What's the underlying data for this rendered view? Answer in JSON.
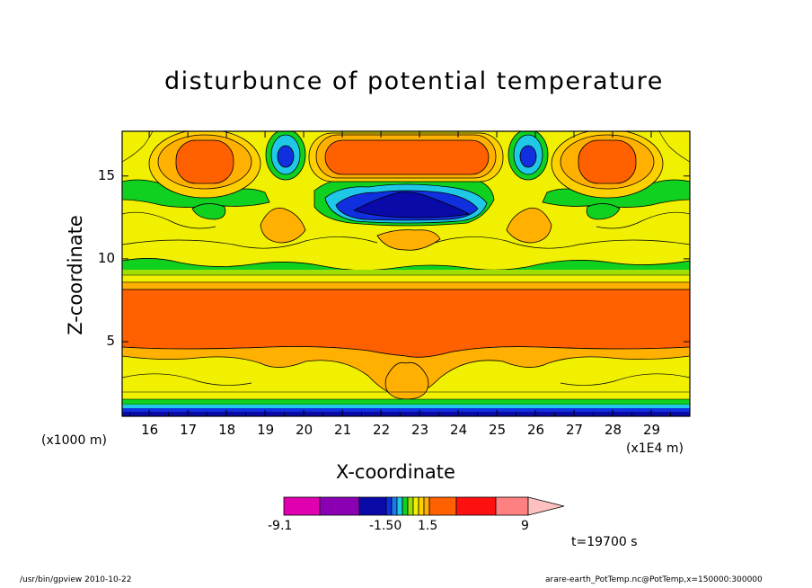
{
  "chart_data": {
    "type": "heatmap",
    "title": "disturbunce of potential temperature",
    "xlabel": "X-coordinate",
    "ylabel": "Z-coordinate",
    "x_unit_note": "(x1E4 m)",
    "y_unit_note": "(x1000 m)",
    "xlim": [
      15.3,
      30.0
    ],
    "ylim": [
      0.5,
      17.7
    ],
    "x_ticks": [
      "16",
      "17",
      "18",
      "19",
      "20",
      "21",
      "22",
      "23",
      "24",
      "25",
      "26",
      "27",
      "28",
      "29"
    ],
    "y_ticks": [
      "5",
      "10",
      "15"
    ],
    "colorbar": {
      "tick_labels": [
        "-9.1",
        "-1.50",
        "1.5",
        "9"
      ],
      "colors": [
        "#e000b0",
        "#8c00b4",
        "#0a0aa8",
        "#1030e0",
        "#1a7af0",
        "#20c8e8",
        "#10d020",
        "#a0e000",
        "#f0f000",
        "#ffd000",
        "#ffb000",
        "#ff6000",
        "#ff1010",
        "#ff8080",
        "#ffc0c0"
      ]
    },
    "time_label": "t=19700 s",
    "footer_left": "/usr/bin/gpview  2010-10-22",
    "footer_right": "arare-earth_PotTemp.nc@PotTemp,x=150000:300000",
    "regions": [
      {
        "name": "surface layer",
        "x": [
          15.3,
          30.0
        ],
        "y": [
          0.5,
          1.0
        ],
        "color": "#0a0aa8"
      },
      {
        "name": "lower warm band",
        "x": [
          15.3,
          30.0
        ],
        "y": [
          4.3,
          8.7
        ],
        "color": "#ff6000"
      },
      {
        "name": "cold cell upper center",
        "x": [
          20.8,
          24.0
        ],
        "y": [
          12.2,
          14.3
        ],
        "color": "#0a0aa8"
      },
      {
        "name": "warm cell left",
        "x": [
          16.8,
          18.8
        ],
        "y": [
          14.8,
          17.2
        ],
        "color": "#ff6000"
      },
      {
        "name": "warm cell center",
        "x": [
          20.8,
          24.2
        ],
        "y": [
          15.0,
          17.1
        ],
        "color": "#ff6000"
      },
      {
        "name": "warm cell right",
        "x": [
          26.5,
          28.5
        ],
        "y": [
          14.8,
          17.2
        ],
        "color": "#ff6000"
      },
      {
        "name": "cold cell left",
        "x": [
          19.1,
          19.9
        ],
        "y": [
          15.2,
          16.9
        ],
        "color": "#1030e0"
      },
      {
        "name": "cold cell right",
        "x": [
          25.3,
          26.1
        ],
        "y": [
          15.2,
          16.9
        ],
        "color": "#1030e0"
      }
    ]
  }
}
